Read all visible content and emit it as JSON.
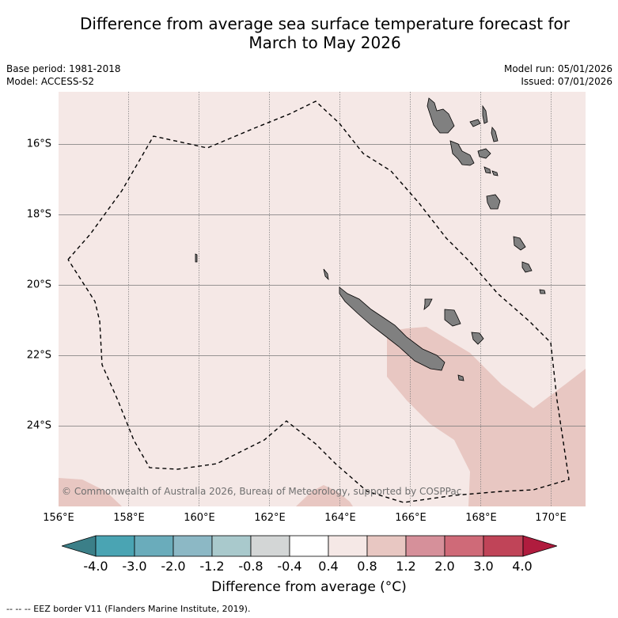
{
  "title_line1": "Difference from average sea surface temperature forecast for",
  "title_line2": "March to May 2026",
  "base_period": "Base period: 1981-2018",
  "model": "Model: ACCESS-S2",
  "model_run": "Model run: 05/01/2026",
  "issued": "Issued: 07/01/2026",
  "copyright": "© Commonwealth of Australia 2026, Bureau of Meteorology, supported by COSPPac",
  "lat_labels": [
    "16°S",
    "18°S",
    "20°S",
    "22°S",
    "24°S"
  ],
  "lon_labels": [
    "156°E",
    "158°E",
    "160°E",
    "162°E",
    "164°E",
    "166°E",
    "168°E",
    "170°E"
  ],
  "colorbar": {
    "tick_labels": [
      "-4.0",
      "-3.0",
      "-2.0",
      "-1.2",
      "-0.8",
      "-0.4",
      "0.4",
      "0.8",
      "1.2",
      "2.0",
      "3.0",
      "4.0"
    ],
    "colors": [
      "#4aa4b3",
      "#6aacbb",
      "#8cb8c5",
      "#a9c9cc",
      "#d3d6d6",
      "#ffffff",
      "#f5e8e6",
      "#e8c7c2",
      "#d6909a",
      "#cf6a78",
      "#c04458"
    ],
    "low_extension_color": "#3b7f88",
    "high_extension_color": "#b01c3e",
    "title": "Difference from average (°C)"
  },
  "colors": {
    "land": "#808080",
    "anomaly_0_4_to_0_8": "#f5e8e6",
    "anomaly_0_8_to_1_2": "#e8c7c2"
  },
  "footnote": "--  --  -- EEZ border V11 (Flanders Marine Institute, 2019)."
}
